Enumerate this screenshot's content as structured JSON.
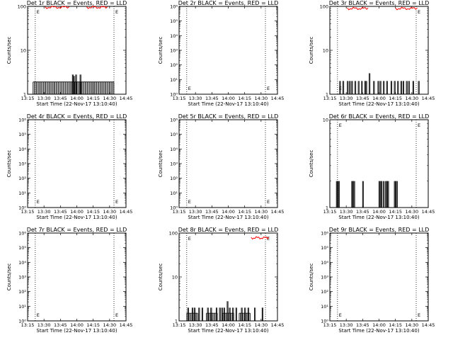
{
  "chart_data": [
    {
      "type": "line",
      "title": "Det 1r BLACK = Events, RED = LLD",
      "xlabel": "Start Time (22-Nov-17 13:10:40)",
      "ylabel": "Counts/sec",
      "yscale": "log",
      "ylim": [
        1,
        100
      ],
      "yticks": [
        "1",
        "10",
        "100"
      ],
      "xticks": [
        "13:15",
        "13:30",
        "13:45",
        "14:00",
        "14:15",
        "14:30",
        "14:45"
      ],
      "xlim_min": [
        15,
        105
      ],
      "vlines_min": [
        22,
        94
      ],
      "annotation": "E",
      "series": [
        {
          "color": "#000000",
          "segments": [
            [
              20,
              40,
              1.9
            ],
            [
              40,
              55,
              1.9
            ],
            [
              55,
              75,
              1.9
            ],
            [
              75,
              94,
              1.9
            ]
          ],
          "spikes": [
            [
              56,
              2.8
            ],
            [
              57,
              2.6
            ],
            [
              59,
              2.8
            ],
            [
              63,
              2.8
            ]
          ]
        },
        {
          "color": "#ff0000",
          "segments": [
            [
              31,
              53,
              98
            ],
            [
              69,
              88,
              98
            ]
          ]
        }
      ]
    },
    {
      "type": "line",
      "title": "Det 2r BLACK = Events, RED = LLD",
      "xlabel": "Start Time (22-Nov-17 13:10:40)",
      "ylabel": "Counts/sec",
      "yscale": "log",
      "ylim": [
        1,
        1000000
      ],
      "yticks": [
        "10⁰",
        "10¹",
        "10²",
        "10³",
        "10⁴",
        "10⁵",
        "10⁶"
      ],
      "xticks": [
        "13:15",
        "13:30",
        "13:45",
        "14:00",
        "14:15",
        "14:30",
        "14:45"
      ],
      "xlim_min": [
        15,
        105
      ],
      "vlines_min": [
        22,
        94
      ],
      "annotation": "E",
      "series": []
    },
    {
      "type": "line",
      "title": "Det 3r BLACK = Events, RED = LLD",
      "xlabel": "Start Time (22-Nov-17 13:10:40)",
      "ylabel": "Counts/sec",
      "yscale": "log",
      "ylim": [
        1,
        100
      ],
      "yticks": [
        "1",
        "10",
        "100"
      ],
      "xticks": [
        "13:15",
        "13:30",
        "13:45",
        "14:00",
        "14:15",
        "14:30",
        "14:45"
      ],
      "xlim_min": [
        15,
        105
      ],
      "vlines_min": [
        22,
        94
      ],
      "annotation": "E",
      "series": [
        {
          "color": "#000000",
          "segments": [],
          "spikes": [
            [
              24,
              2
            ],
            [
              27,
              2
            ],
            [
              31,
              2
            ],
            [
              33,
              2
            ],
            [
              35,
              2
            ],
            [
              38,
              2
            ],
            [
              41,
              2
            ],
            [
              44,
              2
            ],
            [
              47,
              2
            ],
            [
              48,
              2
            ],
            [
              51,
              3
            ],
            [
              55,
              2
            ],
            [
              59,
              2
            ],
            [
              61,
              2
            ],
            [
              64,
              2
            ],
            [
              67,
              2
            ],
            [
              71,
              2
            ],
            [
              74,
              2
            ],
            [
              77,
              2
            ],
            [
              80,
              2
            ],
            [
              82,
              2
            ],
            [
              85,
              2
            ],
            [
              87,
              2
            ],
            [
              91,
              2
            ],
            [
              96,
              2
            ]
          ]
        },
        {
          "color": "#ff0000",
          "segments": [
            [
              31,
              50,
              92
            ],
            [
              75,
              95,
              92
            ]
          ]
        }
      ]
    },
    {
      "type": "line",
      "title": "Det 4r BLACK = Events, RED = LLD",
      "xlabel": "Start Time (22-Nov-17 13:10:40)",
      "ylabel": "Counts/sec",
      "yscale": "log",
      "ylim": [
        1,
        1000000
      ],
      "yticks": [
        "10⁰",
        "10¹",
        "10²",
        "10³",
        "10⁴",
        "10⁵",
        "10⁶"
      ],
      "xticks": [
        "13:15",
        "13:30",
        "13:45",
        "14:00",
        "14:15",
        "14:30",
        "14:45"
      ],
      "xlim_min": [
        15,
        105
      ],
      "vlines_min": [
        22,
        94
      ],
      "annotation": "E",
      "series": []
    },
    {
      "type": "line",
      "title": "Det 5r BLACK = Events, RED = LLD",
      "xlabel": "Start Time (22-Nov-17 13:10:40)",
      "ylabel": "Counts/sec",
      "yscale": "log",
      "ylim": [
        1,
        1000000
      ],
      "yticks": [
        "10⁰",
        "10¹",
        "10²",
        "10³",
        "10⁴",
        "10⁵",
        "10⁶"
      ],
      "xticks": [
        "13:15",
        "13:30",
        "13:45",
        "14:00",
        "14:15",
        "14:30",
        "14:45"
      ],
      "xlim_min": [
        15,
        105
      ],
      "vlines_min": [
        22,
        94
      ],
      "annotation": "E",
      "series": []
    },
    {
      "type": "line",
      "title": "Det 6r BLACK = Events, RED = LLD",
      "xlabel": "Start Time (22-Nov-17 13:10:40)",
      "ylabel": "Counts/sec",
      "yscale": "log",
      "ylim": [
        1,
        10
      ],
      "yticks": [
        "1",
        "10"
      ],
      "xticks": [
        "13:15",
        "13:30",
        "13:45",
        "14:00",
        "14:15",
        "14:30",
        "14:45"
      ],
      "xlim_min": [
        15,
        105
      ],
      "vlines_min": [
        22,
        94
      ],
      "annotation": "E",
      "series": [
        {
          "color": "#000000",
          "segments": [],
          "spikes": [
            [
              21,
              2
            ],
            [
              22,
              2
            ],
            [
              23,
              2
            ],
            [
              35,
              2
            ],
            [
              36,
              2
            ],
            [
              37,
              2
            ],
            [
              45,
              2
            ],
            [
              60,
              2
            ],
            [
              61,
              2
            ],
            [
              62,
              2
            ],
            [
              64,
              2
            ],
            [
              66,
              2
            ],
            [
              67,
              2
            ],
            [
              68,
              2
            ],
            [
              74,
              2
            ],
            [
              75,
              2
            ],
            [
              76,
              2
            ]
          ]
        }
      ]
    },
    {
      "type": "line",
      "title": "Det 7r BLACK = Events, RED = LLD",
      "xlabel": "Start Time (22-Nov-17 13:10:40)",
      "ylabel": "Counts/sec",
      "yscale": "log",
      "ylim": [
        1,
        1000000
      ],
      "yticks": [
        "10⁰",
        "10¹",
        "10²",
        "10³",
        "10⁴",
        "10⁵",
        "10⁶"
      ],
      "xticks": [
        "13:15",
        "13:30",
        "13:45",
        "14:00",
        "14:15",
        "14:30",
        "14:45"
      ],
      "xlim_min": [
        15,
        105
      ],
      "vlines_min": [
        22,
        94
      ],
      "annotation": "E",
      "series": []
    },
    {
      "type": "line",
      "title": "Det 8r BLACK = Events, RED = LLD",
      "xlabel": "Start Time (22-Nov-17 13:10:40)",
      "ylabel": "Counts/sec",
      "yscale": "log",
      "ylim": [
        1,
        100
      ],
      "yticks": [
        "1",
        "10",
        "100"
      ],
      "xticks": [
        "13:15",
        "13:30",
        "13:45",
        "14:00",
        "14:15",
        "14:30",
        "14:45"
      ],
      "xlim_min": [
        15,
        105
      ],
      "vlines_min": [
        22,
        94
      ],
      "annotation": "E",
      "series": [
        {
          "color": "#000000",
          "segments": [
            [
              22,
              32,
              1.5
            ],
            [
              40,
              50,
              1.5
            ],
            [
              55,
              65,
              1.5
            ],
            [
              70,
              80,
              1.5
            ]
          ],
          "spikes": [
            [
              23,
              2
            ],
            [
              27,
              2
            ],
            [
              29,
              2
            ],
            [
              33,
              2
            ],
            [
              36,
              2
            ],
            [
              41,
              2
            ],
            [
              44,
              2
            ],
            [
              49,
              2
            ],
            [
              52,
              2
            ],
            [
              54,
              2
            ],
            [
              56,
              2
            ],
            [
              59,
              2.8
            ],
            [
              61,
              2
            ],
            [
              64,
              2
            ],
            [
              67,
              2
            ],
            [
              72,
              2
            ],
            [
              75,
              2
            ],
            [
              78,
              2
            ],
            [
              84,
              2
            ],
            [
              91,
              2
            ]
          ]
        },
        {
          "color": "#ff0000",
          "segments": [
            [
              81,
              97,
              80
            ]
          ]
        }
      ]
    },
    {
      "type": "line",
      "title": "Det 9r BLACK = Events, RED = LLD",
      "xlabel": "Start Time (22-Nov-17 13:10:40)",
      "ylabel": "Counts/sec",
      "yscale": "log",
      "ylim": [
        1,
        1000000
      ],
      "yticks": [
        "10⁰",
        "10¹",
        "10²",
        "10³",
        "10⁴",
        "10⁵",
        "10⁶"
      ],
      "xticks": [
        "13:15",
        "13:30",
        "13:45",
        "14:00",
        "14:15",
        "14:30",
        "14:45"
      ],
      "xlim_min": [
        15,
        105
      ],
      "vlines_min": [
        22,
        94
      ],
      "annotation": "E",
      "series": []
    }
  ]
}
